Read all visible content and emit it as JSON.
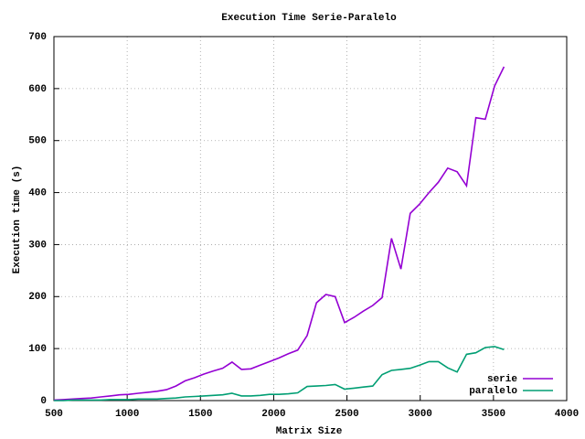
{
  "chart_data": {
    "type": "line",
    "title": "Execution Time Serie-Paralelo",
    "x_label": "Matrix Size",
    "y_label": "Execution time (s)",
    "x": [
      500,
      564,
      628,
      692,
      756,
      820,
      884,
      948,
      1012,
      1076,
      1140,
      1204,
      1268,
      1332,
      1396,
      1460,
      1524,
      1588,
      1652,
      1716,
      1780,
      1844,
      1908,
      1972,
      2036,
      2100,
      2164,
      2228,
      2292,
      2356,
      2420,
      2484,
      2548,
      2612,
      2676,
      2740,
      2804,
      2868,
      2932,
      2996,
      3060,
      3124,
      3188,
      3252,
      3316,
      3380,
      3444,
      3508,
      3572
    ],
    "series": [
      {
        "name": "serie",
        "color": "#9400d3",
        "values": [
          1,
          2,
          3,
          4,
          5,
          7,
          9,
          11,
          12,
          14,
          16,
          18,
          21,
          28,
          38,
          44,
          51,
          57,
          62,
          74,
          60,
          61,
          68,
          75,
          82,
          90,
          97,
          125,
          188,
          204,
          200,
          150,
          160,
          172,
          183,
          198,
          312,
          253,
          360,
          378,
          400,
          420,
          447,
          440,
          413,
          544,
          541,
          605,
          642
        ]
      },
      {
        "name": "paralelo",
        "color": "#009e73",
        "values": [
          0,
          0,
          1,
          1,
          1,
          1,
          2,
          2,
          2,
          3,
          3,
          3,
          4,
          5,
          7,
          8,
          9,
          10,
          11,
          14,
          9,
          9,
          10,
          12,
          12,
          13,
          15,
          27,
          28,
          29,
          31,
          22,
          24,
          26,
          28,
          50,
          58,
          60,
          62,
          68,
          75,
          75,
          63,
          55,
          89,
          92,
          102,
          104,
          98
        ]
      }
    ],
    "xlim": [
      500,
      4000
    ],
    "xticks": [
      500,
      1000,
      1500,
      2000,
      2500,
      3000,
      3500,
      4000
    ],
    "ylim": [
      0,
      700
    ],
    "yticks": [
      0,
      100,
      200,
      300,
      400,
      500,
      600,
      700
    ],
    "grid": true,
    "legend_position": "lower right"
  }
}
